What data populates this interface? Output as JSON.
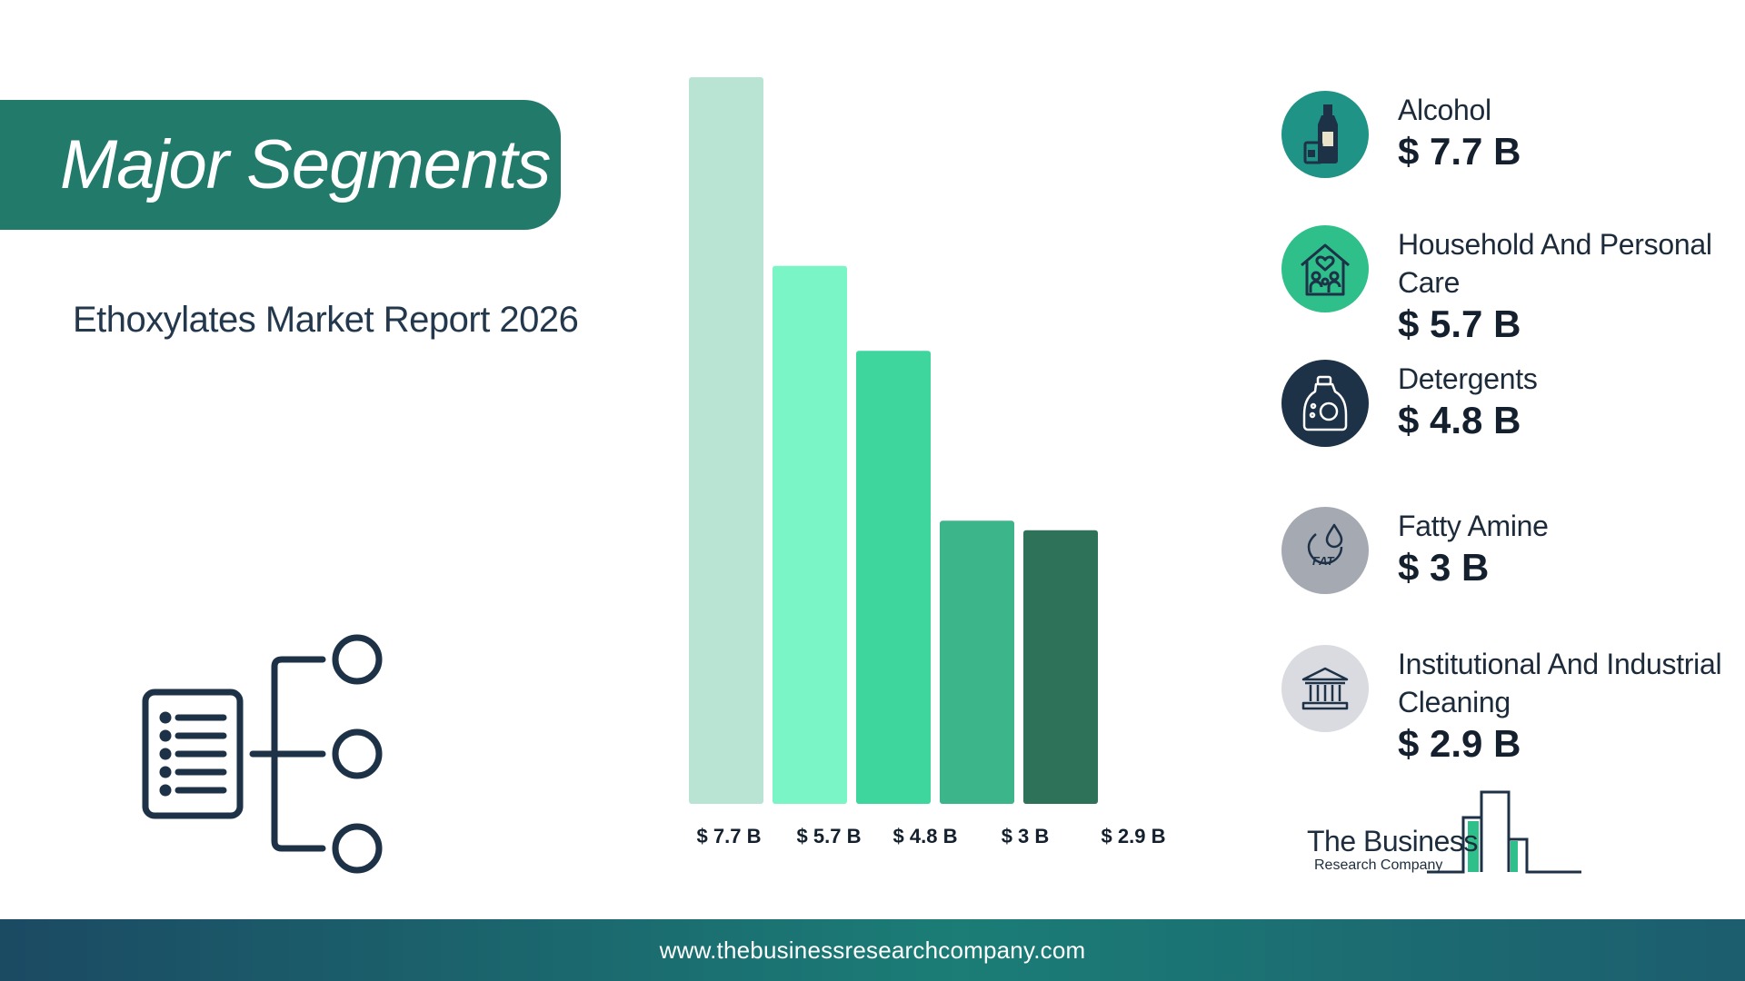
{
  "header": {
    "title": "Major Segments",
    "subtitle": "Ethoxylates Market Report 2026"
  },
  "chart_data": {
    "type": "bar",
    "categories": [
      "Alcohol",
      "Household And Personal Care",
      "Detergents",
      "Fatty Amine",
      "Institutional And Industrial Cleaning"
    ],
    "values": [
      7.7,
      5.7,
      4.8,
      3,
      2.9
    ],
    "value_labels": [
      "$ 7.7 B",
      "$ 5.7 B",
      "$ 4.8 B",
      "$ 3 B",
      "$ 2.9 B"
    ],
    "colors": [
      "#b9e4d4",
      "#7af5c6",
      "#3fd69e",
      "#3db58a",
      "#2e725a"
    ],
    "ylim": [
      0,
      7.7
    ],
    "grid": false,
    "legend": "right"
  },
  "legend": {
    "items": [
      {
        "label": "Alcohol",
        "value": "$ 7.7 B",
        "icon": "bottle-icon",
        "circle_color": "#1f9385"
      },
      {
        "label": "Household And Personal Care",
        "value": "$ 5.7 B",
        "icon": "family-home-icon",
        "circle_color": "#2fbf8a"
      },
      {
        "label": "Detergents",
        "value": "$ 4.8 B",
        "icon": "detergent-bottle-icon",
        "circle_color": "#1d3147"
      },
      {
        "label": "Fatty Amine",
        "value": "$ 3 B",
        "icon": "fat-drop-icon",
        "circle_color": "#a5a9b2"
      },
      {
        "label": "Institutional And Industrial Cleaning",
        "value": "$ 2.9 B",
        "icon": "institution-building-icon",
        "circle_color": "#d9dbe0"
      }
    ]
  },
  "logo": {
    "line1": "The Business",
    "line2": "Research Company"
  },
  "footer": {
    "url": "www.thebusinessresearchcompany.com"
  }
}
